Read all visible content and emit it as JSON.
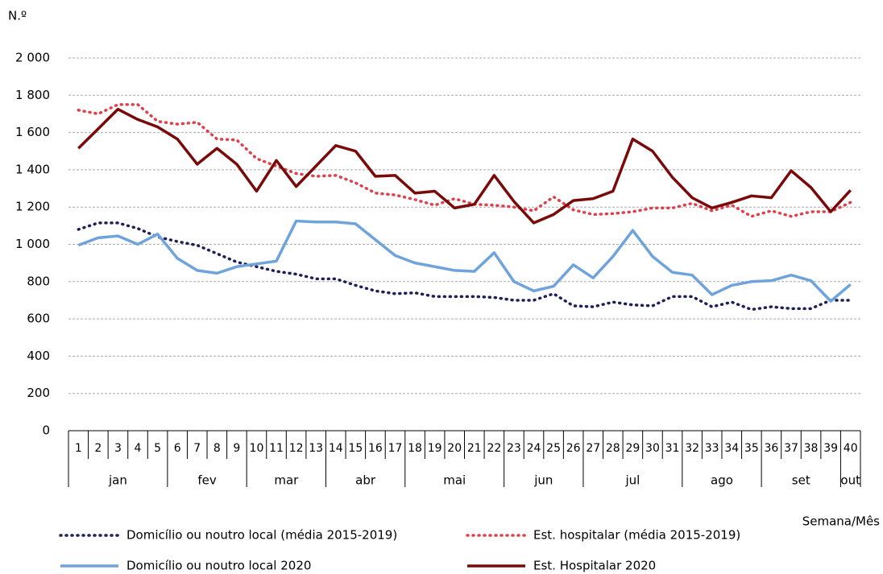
{
  "chart_data": {
    "type": "line",
    "y_label": "N.º",
    "x_label": "Semana/Mês",
    "categories": [
      "1",
      "2",
      "3",
      "4",
      "5",
      "6",
      "7",
      "8",
      "9",
      "10",
      "11",
      "12",
      "13",
      "14",
      "15",
      "16",
      "17",
      "18",
      "19",
      "20",
      "21",
      "22",
      "23",
      "24",
      "25",
      "26",
      "27",
      "28",
      "29",
      "30",
      "31",
      "32",
      "33",
      "34",
      "35",
      "36",
      "37",
      "38",
      "39",
      "40"
    ],
    "months": [
      {
        "label": "jan",
        "span": 5
      },
      {
        "label": "fev",
        "span": 4
      },
      {
        "label": "mar",
        "span": 4
      },
      {
        "label": "abr",
        "span": 4
      },
      {
        "label": "mai",
        "span": 5
      },
      {
        "label": "jun",
        "span": 4
      },
      {
        "label": "jul",
        "span": 5
      },
      {
        "label": "ago",
        "span": 4
      },
      {
        "label": "set",
        "span": 4
      },
      {
        "label": "out",
        "span": 1
      }
    ],
    "ylim": [
      0,
      2000
    ],
    "yticks": [
      0,
      200,
      400,
      600,
      800,
      {
        "value": 1000,
        "label": "1 000"
      },
      {
        "value": 1200,
        "label": "1 200"
      },
      {
        "value": 1400,
        "label": "1 400"
      },
      {
        "value": 1600,
        "label": "1 600"
      },
      {
        "value": 1800,
        "label": "1 800"
      },
      {
        "value": 2000,
        "label": "2 000"
      }
    ],
    "grid": true,
    "series": [
      {
        "name": "Domicílio ou noutro local (média 2015-2019)",
        "color": "#1f1f5c",
        "style": "dotted",
        "values": [
          1080,
          1115,
          1115,
          1085,
          1040,
          1015,
          995,
          950,
          905,
          880,
          855,
          840,
          815,
          815,
          780,
          750,
          735,
          740,
          720,
          720,
          720,
          715,
          700,
          700,
          735,
          670,
          665,
          690,
          675,
          670,
          720,
          720,
          665,
          690,
          650,
          665,
          655,
          655,
          700,
          700
        ]
      },
      {
        "name": "Est. hospitalar (média 2015-2019)",
        "color": "#e0404c",
        "style": "dotted",
        "values": [
          1720,
          1700,
          1750,
          1750,
          1660,
          1645,
          1655,
          1565,
          1560,
          1460,
          1420,
          1380,
          1365,
          1370,
          1330,
          1275,
          1265,
          1240,
          1210,
          1245,
          1215,
          1210,
          1200,
          1180,
          1255,
          1185,
          1160,
          1165,
          1175,
          1195,
          1195,
          1220,
          1180,
          1210,
          1150,
          1180,
          1150,
          1175,
          1175,
          1225
        ]
      },
      {
        "name": "Domicílio ou noutro local 2020",
        "color": "#6fa3dc",
        "style": "solid",
        "values": [
          995,
          1035,
          1045,
          1000,
          1055,
          925,
          860,
          845,
          880,
          895,
          910,
          1125,
          1120,
          1120,
          1110,
          1025,
          940,
          900,
          880,
          860,
          855,
          955,
          800,
          750,
          775,
          890,
          820,
          935,
          1075,
          935,
          850,
          835,
          730,
          780,
          800,
          805,
          835,
          805,
          695,
          785
        ]
      },
      {
        "name": "Est. Hospitalar 2020",
        "color": "#7a0a0a",
        "style": "solid",
        "values": [
          1515,
          1620,
          1725,
          1670,
          1630,
          1565,
          1430,
          1515,
          1430,
          1285,
          1450,
          1310,
          1420,
          1530,
          1500,
          1365,
          1370,
          1275,
          1285,
          1195,
          1215,
          1370,
          1230,
          1115,
          1160,
          1235,
          1245,
          1285,
          1565,
          1500,
          1360,
          1250,
          1195,
          1225,
          1260,
          1250,
          1395,
          1305,
          1175,
          1290
        ]
      }
    ]
  }
}
